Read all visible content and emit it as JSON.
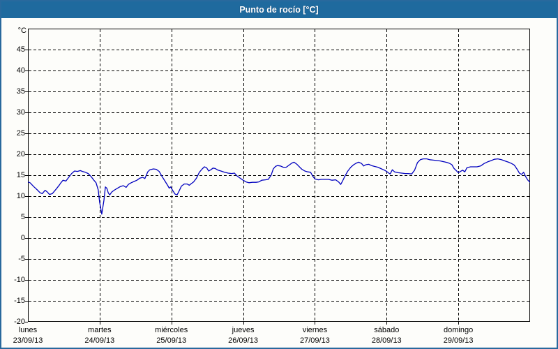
{
  "window": {
    "title": "Punto de rocío [°C]"
  },
  "colors": {
    "border": "#29699d",
    "titlebar_bg": "#1f6a9e",
    "titlebar_text": "#ffffff",
    "panel_bg": "#fdfdfa",
    "frame": "#000000",
    "grid": "#000000",
    "line": "#0000bf",
    "label_text": "#000000"
  },
  "chart_data": {
    "type": "line",
    "title": "Punto de rocío [°C]",
    "ylabel": "°C",
    "xlabel": "",
    "ylim": [
      -20,
      50
    ],
    "y_ticks": [
      45,
      40,
      35,
      30,
      25,
      20,
      15,
      10,
      5,
      0,
      -5,
      -10,
      -15,
      -20
    ],
    "grid": "dashed",
    "legend": "none",
    "x_axis": {
      "unit": "day",
      "days": [
        {
          "label": "lunes",
          "date": "23/09/13"
        },
        {
          "label": "martes",
          "date": "24/09/13"
        },
        {
          "label": "miércoles",
          "date": "25/09/13"
        },
        {
          "label": "jueves",
          "date": "26/09/13"
        },
        {
          "label": "viernes",
          "date": "27/09/13"
        },
        {
          "label": "sábado",
          "date": "28/09/13"
        },
        {
          "label": "domingo",
          "date": "29/09/13"
        }
      ]
    },
    "series": [
      {
        "name": "Punto de rocío",
        "color": "#0000bf",
        "x_unit": "days_from_start",
        "points": [
          [
            0.0,
            13.4
          ],
          [
            0.03,
            13.2
          ],
          [
            0.08,
            12.3
          ],
          [
            0.13,
            11.5
          ],
          [
            0.17,
            10.8
          ],
          [
            0.2,
            10.6
          ],
          [
            0.24,
            11.4
          ],
          [
            0.27,
            11.0
          ],
          [
            0.3,
            10.4
          ],
          [
            0.34,
            10.6
          ],
          [
            0.4,
            11.8
          ],
          [
            0.44,
            12.7
          ],
          [
            0.46,
            13.2
          ],
          [
            0.49,
            13.8
          ],
          [
            0.53,
            13.6
          ],
          [
            0.56,
            14.3
          ],
          [
            0.61,
            15.4
          ],
          [
            0.65,
            16.0
          ],
          [
            0.69,
            15.9
          ],
          [
            0.73,
            16.1
          ],
          [
            0.76,
            15.9
          ],
          [
            0.8,
            15.7
          ],
          [
            0.84,
            15.4
          ],
          [
            0.88,
            14.7
          ],
          [
            0.92,
            13.8
          ],
          [
            0.95,
            13.2
          ],
          [
            0.98,
            11.5
          ],
          [
            1.0,
            8.5
          ],
          [
            1.03,
            5.7
          ],
          [
            1.06,
            9.0
          ],
          [
            1.08,
            12.2
          ],
          [
            1.1,
            11.9
          ],
          [
            1.12,
            10.8
          ],
          [
            1.14,
            10.3
          ],
          [
            1.17,
            11.0
          ],
          [
            1.21,
            11.5
          ],
          [
            1.25,
            11.9
          ],
          [
            1.29,
            12.3
          ],
          [
            1.33,
            12.5
          ],
          [
            1.37,
            12.1
          ],
          [
            1.4,
            12.8
          ],
          [
            1.44,
            13.2
          ],
          [
            1.48,
            13.5
          ],
          [
            1.52,
            13.8
          ],
          [
            1.56,
            14.3
          ],
          [
            1.6,
            14.5
          ],
          [
            1.63,
            14.2
          ],
          [
            1.67,
            15.8
          ],
          [
            1.7,
            16.3
          ],
          [
            1.75,
            16.5
          ],
          [
            1.79,
            16.4
          ],
          [
            1.83,
            15.9
          ],
          [
            1.87,
            14.7
          ],
          [
            1.91,
            13.6
          ],
          [
            1.95,
            12.5
          ],
          [
            1.97,
            11.9
          ],
          [
            1.99,
            12.2
          ],
          [
            2.02,
            11.3
          ],
          [
            2.05,
            10.5
          ],
          [
            2.08,
            10.3
          ],
          [
            2.11,
            11.3
          ],
          [
            2.14,
            12.4
          ],
          [
            2.18,
            12.9
          ],
          [
            2.22,
            12.9
          ],
          [
            2.25,
            12.6
          ],
          [
            2.27,
            12.9
          ],
          [
            2.31,
            13.4
          ],
          [
            2.35,
            14.3
          ],
          [
            2.39,
            15.7
          ],
          [
            2.43,
            16.5
          ],
          [
            2.46,
            17.0
          ],
          [
            2.49,
            16.8
          ],
          [
            2.52,
            16.0
          ],
          [
            2.55,
            16.3
          ],
          [
            2.58,
            16.7
          ],
          [
            2.61,
            16.6
          ],
          [
            2.65,
            16.2
          ],
          [
            2.69,
            16.0
          ],
          [
            2.74,
            15.7
          ],
          [
            2.79,
            15.5
          ],
          [
            2.84,
            15.4
          ],
          [
            2.88,
            15.5
          ],
          [
            2.91,
            14.9
          ],
          [
            2.95,
            14.4
          ],
          [
            3.0,
            13.8
          ],
          [
            3.04,
            13.4
          ],
          [
            3.08,
            13.2
          ],
          [
            3.13,
            13.3
          ],
          [
            3.18,
            13.3
          ],
          [
            3.22,
            13.4
          ],
          [
            3.26,
            13.8
          ],
          [
            3.31,
            13.9
          ],
          [
            3.35,
            14.0
          ],
          [
            3.39,
            15.0
          ],
          [
            3.42,
            16.5
          ],
          [
            3.45,
            17.1
          ],
          [
            3.48,
            17.3
          ],
          [
            3.52,
            17.2
          ],
          [
            3.56,
            16.9
          ],
          [
            3.6,
            16.9
          ],
          [
            3.64,
            17.4
          ],
          [
            3.68,
            17.9
          ],
          [
            3.71,
            18.1
          ],
          [
            3.75,
            17.6
          ],
          [
            3.79,
            16.9
          ],
          [
            3.82,
            16.4
          ],
          [
            3.86,
            16.0
          ],
          [
            3.9,
            15.8
          ],
          [
            3.94,
            15.7
          ],
          [
            3.97,
            14.8
          ],
          [
            4.0,
            14.1
          ],
          [
            4.05,
            13.9
          ],
          [
            4.09,
            14.0
          ],
          [
            4.14,
            14.0
          ],
          [
            4.19,
            14.0
          ],
          [
            4.24,
            13.8
          ],
          [
            4.29,
            13.9
          ],
          [
            4.33,
            13.4
          ],
          [
            4.36,
            12.8
          ],
          [
            4.38,
            13.4
          ],
          [
            4.42,
            14.8
          ],
          [
            4.46,
            16.0
          ],
          [
            4.5,
            16.9
          ],
          [
            4.54,
            17.5
          ],
          [
            4.58,
            17.9
          ],
          [
            4.61,
            18.1
          ],
          [
            4.65,
            17.8
          ],
          [
            4.68,
            17.2
          ],
          [
            4.71,
            17.5
          ],
          [
            4.75,
            17.6
          ],
          [
            4.79,
            17.3
          ],
          [
            4.83,
            17.1
          ],
          [
            4.88,
            16.9
          ],
          [
            4.93,
            16.5
          ],
          [
            4.97,
            16.2
          ],
          [
            5.0,
            15.9
          ],
          [
            5.03,
            15.5
          ],
          [
            5.05,
            15.3
          ],
          [
            5.08,
            16.3
          ],
          [
            5.11,
            15.8
          ],
          [
            5.16,
            15.6
          ],
          [
            5.21,
            15.5
          ],
          [
            5.26,
            15.4
          ],
          [
            5.3,
            15.4
          ],
          [
            5.35,
            15.3
          ],
          [
            5.39,
            16.2
          ],
          [
            5.43,
            18.0
          ],
          [
            5.47,
            18.7
          ],
          [
            5.51,
            18.9
          ],
          [
            5.56,
            18.9
          ],
          [
            5.6,
            18.7
          ],
          [
            5.65,
            18.6
          ],
          [
            5.7,
            18.5
          ],
          [
            5.75,
            18.4
          ],
          [
            5.8,
            18.2
          ],
          [
            5.85,
            18.0
          ],
          [
            5.88,
            17.8
          ],
          [
            5.91,
            17.5
          ],
          [
            5.94,
            16.6
          ],
          [
            5.97,
            16.1
          ],
          [
            6.0,
            15.6
          ],
          [
            6.03,
            15.9
          ],
          [
            6.06,
            16.2
          ],
          [
            6.09,
            15.8
          ],
          [
            6.12,
            16.8
          ],
          [
            6.17,
            17.0
          ],
          [
            6.21,
            17.0
          ],
          [
            6.26,
            17.0
          ],
          [
            6.31,
            17.2
          ],
          [
            6.36,
            17.8
          ],
          [
            6.41,
            18.2
          ],
          [
            6.46,
            18.5
          ],
          [
            6.5,
            18.8
          ],
          [
            6.55,
            18.9
          ],
          [
            6.6,
            18.7
          ],
          [
            6.65,
            18.4
          ],
          [
            6.7,
            18.1
          ],
          [
            6.74,
            17.8
          ],
          [
            6.78,
            17.4
          ],
          [
            6.82,
            16.4
          ],
          [
            6.85,
            15.5
          ],
          [
            6.88,
            15.2
          ],
          [
            6.91,
            15.7
          ],
          [
            6.94,
            14.6
          ],
          [
            6.97,
            13.8
          ],
          [
            7.0,
            13.3
          ]
        ]
      }
    ]
  }
}
